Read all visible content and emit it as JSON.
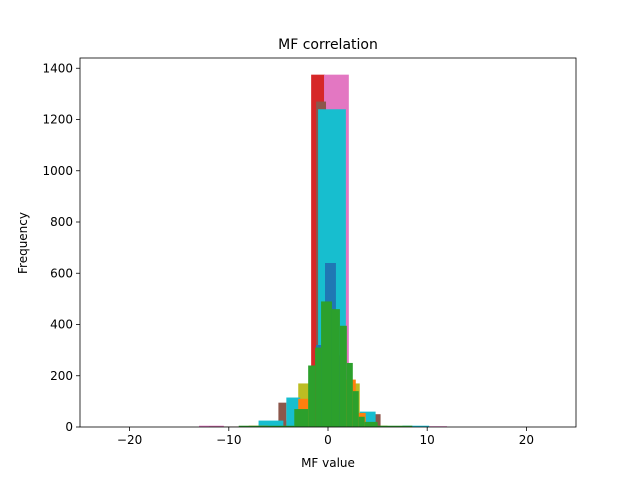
{
  "chart_data": {
    "type": "bar",
    "title": "MF correlation",
    "xlabel": "MF value",
    "ylabel": "Frequency",
    "xlim": [
      -25,
      25
    ],
    "ylim": [
      0,
      1440
    ],
    "xticks": [
      -20,
      -10,
      0,
      10,
      20
    ],
    "yticks": [
      0,
      200,
      400,
      600,
      800,
      1000,
      1200,
      1400
    ],
    "xtick_labels": [
      "−20",
      "−10",
      "0",
      "10",
      "20"
    ],
    "ytick_labels": [
      "0",
      "200",
      "400",
      "600",
      "800",
      "1000",
      "1200",
      "1400"
    ],
    "grid": false,
    "legend": "none",
    "series": [
      {
        "color": "#bcbd22",
        "bins": [
          [
            -7,
            -5,
            10
          ],
          [
            -5,
            -3,
            25
          ],
          [
            -3,
            -1.6,
            170
          ],
          [
            -1.6,
            -0.9,
            1110
          ],
          [
            2,
            3.2,
            170
          ],
          [
            3.2,
            4.5,
            20
          ],
          [
            4.5,
            6,
            5
          ]
        ]
      },
      {
        "color": "#d62728",
        "bins": [
          [
            -1.7,
            -0.3,
            1375
          ],
          [
            -0.3,
            1.0,
            300
          ]
        ]
      },
      {
        "color": "#e377c2",
        "bins": [
          [
            -13,
            -10.5,
            5
          ],
          [
            -0.4,
            2.1,
            1375
          ],
          [
            10,
            12,
            3
          ]
        ]
      },
      {
        "color": "#8c564b",
        "bins": [
          [
            -12,
            -9,
            2
          ],
          [
            -5,
            -4.2,
            95
          ],
          [
            -1.2,
            -0.2,
            1270
          ],
          [
            4.2,
            5.3,
            50
          ],
          [
            5.3,
            7.5,
            3
          ]
        ]
      },
      {
        "color": "#17becf",
        "bins": [
          [
            -7,
            -4.5,
            25
          ],
          [
            -4.2,
            -2.8,
            115
          ],
          [
            -1.0,
            1.8,
            1240
          ],
          [
            3.2,
            4.8,
            60
          ],
          [
            7.5,
            10.2,
            5
          ]
        ]
      },
      {
        "color": "#1f77b4",
        "bins": [
          [
            -1.2,
            -0.3,
            320
          ],
          [
            -0.3,
            0.8,
            640
          ],
          [
            0.8,
            1.7,
            280
          ]
        ]
      },
      {
        "color": "#ff7f0e",
        "bins": [
          [
            -3,
            -2,
            110
          ],
          [
            1.8,
            2.8,
            185
          ],
          [
            2.8,
            3.8,
            55
          ],
          [
            -8,
            -6,
            5
          ]
        ]
      },
      {
        "color": "#2ca02c",
        "bins": [
          [
            -9,
            -3.4,
            5
          ],
          [
            -3.4,
            -2.0,
            70
          ],
          [
            -2.0,
            -1.3,
            240
          ],
          [
            -1.3,
            -0.7,
            310
          ],
          [
            -0.7,
            0.4,
            490
          ],
          [
            0.4,
            1.2,
            460
          ],
          [
            1.2,
            1.9,
            395
          ],
          [
            1.9,
            2.5,
            250
          ],
          [
            2.5,
            3.1,
            140
          ],
          [
            3.1,
            3.7,
            40
          ],
          [
            3.7,
            5.0,
            20
          ],
          [
            5.0,
            8.5,
            5
          ]
        ]
      }
    ]
  }
}
